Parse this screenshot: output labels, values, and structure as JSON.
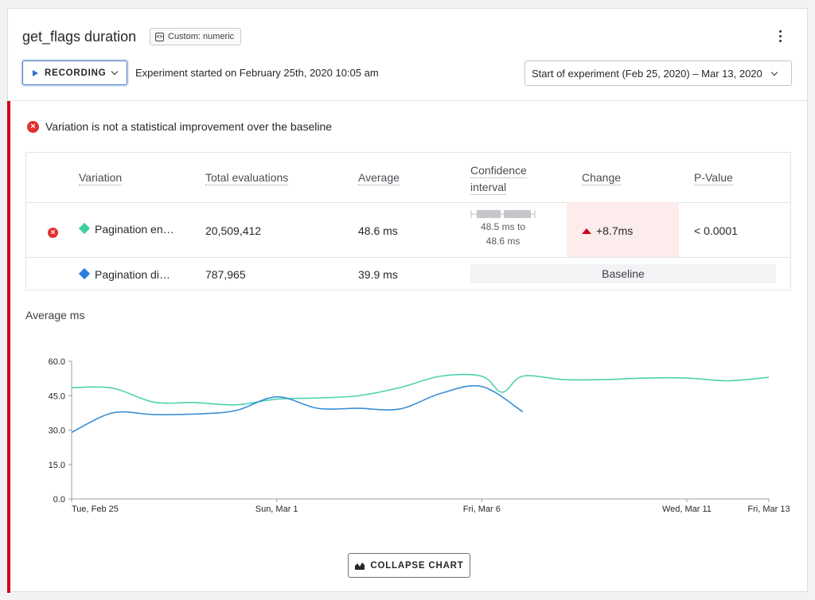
{
  "header": {
    "title": "get_flags duration",
    "badge": "Custom: numeric",
    "recording_label": "RECORDING",
    "experiment_started": "Experiment started on February 25th, 2020 10:05 am",
    "date_range": "Start of experiment (Feb 25, 2020) – Mar 13, 2020"
  },
  "alert": {
    "text": "Variation is not a statistical improvement over the baseline"
  },
  "table": {
    "columns": [
      "Variation",
      "Total evaluations",
      "Average",
      "Confidence interval",
      "Change",
      "P-Value"
    ],
    "rows": [
      {
        "variation": "Pagination en…",
        "total": "20,509,412",
        "average": "48.6 ms",
        "ci_low": "48.5 ms to",
        "ci_high": "48.6 ms",
        "change": "+8.7ms",
        "pvalue": "< 0.0001",
        "color": "#3ecf9a"
      },
      {
        "variation": "Pagination di…",
        "total": "787,965",
        "average": "39.9 ms",
        "baseline": "Baseline",
        "color": "#2b7de0"
      }
    ]
  },
  "chart_title": "Average ms",
  "chart_data": {
    "type": "line",
    "ylim": [
      0,
      60
    ],
    "yticks": [
      "0.0",
      "15.0",
      "30.0",
      "45.0",
      "60.0"
    ],
    "xlim": [
      0,
      17
    ],
    "xticks": [
      {
        "x": 0,
        "label": "Tue, Feb 25"
      },
      {
        "x": 5,
        "label": "Sun, Mar 1"
      },
      {
        "x": 10,
        "label": "Fri, Mar 6"
      },
      {
        "x": 15,
        "label": "Wed, Mar 11"
      },
      {
        "x": 17,
        "label": "Fri, Mar 13"
      }
    ],
    "series": [
      {
        "color": "#4fd1b0",
        "x": [
          0,
          1,
          2,
          3,
          4,
          5,
          6,
          7,
          8,
          9,
          10,
          10.5,
          11,
          12,
          13,
          14,
          15,
          16,
          17
        ],
        "values": [
          48.5,
          48.3,
          42.2,
          42,
          41,
          43.5,
          44,
          45,
          48.5,
          53.5,
          53.5,
          46.5,
          53.5,
          52,
          52,
          52.7,
          52.7,
          51.5,
          53
        ]
      },
      {
        "color": "#3a8fd6",
        "x": [
          0,
          1,
          2,
          3,
          4,
          5,
          6,
          7,
          8,
          9,
          10,
          11
        ],
        "values": [
          29,
          37.5,
          36.8,
          37,
          38.5,
          44.5,
          39.5,
          39.5,
          39.2,
          46,
          49,
          38
        ]
      }
    ]
  },
  "collapse_label": "COLLAPSE CHART"
}
